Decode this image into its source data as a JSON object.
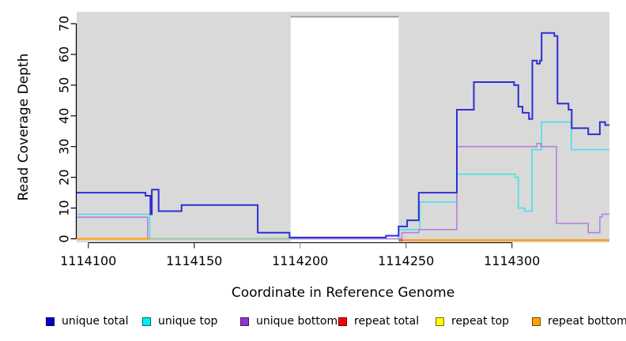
{
  "chart_data": {
    "type": "line",
    "title": "",
    "xlabel": "Coordinate in Reference Genome",
    "ylabel": "Read Coverage Depth",
    "xlim": [
      1114094.5,
      1114346
    ],
    "ylim": [
      0,
      72
    ],
    "x_ticks": [
      1114100,
      1114150,
      1114200,
      1114250,
      1114300
    ],
    "x_tick_colors": [
      "#2b2b2b",
      "#2b2b2b",
      "#9a9a9a",
      "#6f6f6f",
      "#2b2b2b"
    ],
    "y_ticks": [
      0,
      10,
      20,
      30,
      40,
      50,
      60,
      70
    ],
    "plot_bg": "#d9d9d9",
    "axis_color": "#000000",
    "highlight_region": {
      "x0": 1114195.5,
      "x1": 1114246.5,
      "color": "#ffffff",
      "border": "#909090",
      "y_top": 72.2
    },
    "legend": [
      {
        "label": "unique total",
        "color": "#0000cd"
      },
      {
        "label": "unique top",
        "color": "#00eded"
      },
      {
        "label": "unique bottom",
        "color": "#9932cc"
      },
      {
        "label": "repeat total",
        "color": "#fb0000"
      },
      {
        "label": "repeat top",
        "color": "#ffff00"
      },
      {
        "label": "repeat bottom",
        "color": "#ffa500"
      }
    ],
    "series": [
      {
        "id": "repeat-top",
        "name": "repeat top",
        "color": "#ffff00",
        "width": 2,
        "steps": [
          [
            1114246.5,
            -0.5
          ]
        ],
        "end": 1114346
      },
      {
        "id": "repeat-total",
        "name": "repeat total",
        "color": "#e93434",
        "width": 2,
        "steps": [
          [
            1114246.5,
            -0.5
          ]
        ],
        "end": 1114346
      },
      {
        "id": "unique-top",
        "name": "unique top",
        "color": "#45e1e8",
        "width": 1.6,
        "steps": [
          [
            1114094.5,
            8
          ],
          [
            1114129,
            0
          ],
          [
            1114246.5,
            3
          ],
          [
            1114256.5,
            12
          ],
          [
            1114274,
            21
          ],
          [
            1114301.5,
            20
          ],
          [
            1114303,
            10
          ],
          [
            1114306,
            9
          ],
          [
            1114309.5,
            29
          ],
          [
            1114314,
            38
          ],
          [
            1114328,
            29
          ]
        ],
        "end": 1114346
      },
      {
        "id": "unique-bottom",
        "name": "unique bottom",
        "color": "#b77fdc",
        "width": 1.6,
        "steps": [
          [
            1114094.5,
            7
          ],
          [
            1114128,
            0
          ],
          [
            1114248,
            2
          ],
          [
            1114256,
            3
          ],
          [
            1114274,
            30
          ],
          [
            1114311.8,
            31
          ],
          [
            1114313.7,
            30
          ],
          [
            1114321,
            5
          ],
          [
            1114336,
            2
          ],
          [
            1114341.5,
            7
          ],
          [
            1114342.5,
            8
          ]
        ],
        "end": 1114346
      },
      {
        "id": "baseline-green-segment",
        "name": "green zero segment",
        "color": "#90cd90",
        "width": 1.6,
        "steps": [
          [
            1114129,
            0
          ]
        ],
        "end": 1114195.5
      },
      {
        "id": "repeat-bottom-left",
        "name": "repeat bottom",
        "color": "#ffa011",
        "width": 2.2,
        "steps": [
          [
            1114094.5,
            0
          ]
        ],
        "end": 1114129
      },
      {
        "id": "repeat-bottom-right",
        "name": "repeat bottom",
        "color": "#ffa011",
        "width": 2.2,
        "steps": [
          [
            1114248.5,
            -0.4
          ]
        ],
        "end": 1114346
      },
      {
        "id": "unique-total",
        "name": "unique total",
        "color": "#2e2ed6",
        "width": 2,
        "steps": [
          [
            1114094.5,
            15
          ],
          [
            1114127,
            14
          ],
          [
            1114129.3,
            8
          ],
          [
            1114130,
            16
          ],
          [
            1114133.2,
            9
          ],
          [
            1114144,
            11
          ],
          [
            1114180,
            2
          ],
          [
            1114195,
            0.4
          ],
          [
            1114240.5,
            1
          ],
          [
            1114246.5,
            4
          ],
          [
            1114250.5,
            6
          ],
          [
            1114256,
            15
          ],
          [
            1114274,
            42
          ],
          [
            1114282,
            51
          ],
          [
            1114301,
            50
          ],
          [
            1114303,
            43
          ],
          [
            1114305,
            41
          ],
          [
            1114308,
            39
          ],
          [
            1114309.6,
            58
          ],
          [
            1114311.8,
            57
          ],
          [
            1114313.2,
            58
          ],
          [
            1114314,
            67
          ],
          [
            1114320,
            66
          ],
          [
            1114321.5,
            44
          ],
          [
            1114326.7,
            42
          ],
          [
            1114328.2,
            36
          ],
          [
            1114336,
            34
          ],
          [
            1114341.5,
            38
          ],
          [
            1114344,
            37
          ]
        ],
        "end": 1114346
      }
    ]
  }
}
